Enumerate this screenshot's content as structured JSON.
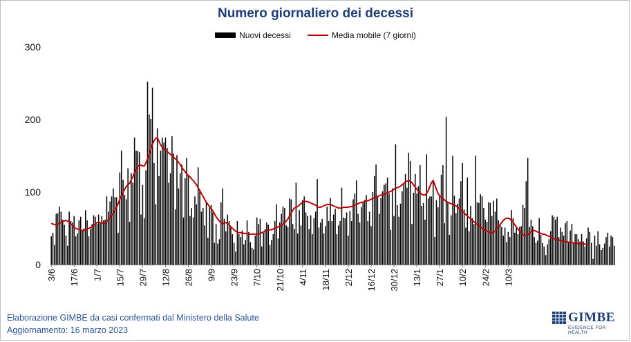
{
  "chart_data": {
    "type": "bar",
    "title": "Numero giornaliero dei decessi",
    "xlabel": "",
    "ylabel": "",
    "ylim": [
      0,
      300
    ],
    "yticks": [
      "0",
      "100",
      "200",
      "300"
    ],
    "tick_labels": [
      "3/6",
      "17/6",
      "1/7",
      "15/7",
      "29/7",
      "12/8",
      "26/8",
      "9/9",
      "23/9",
      "7/10",
      "21/10",
      "4/11",
      "18/11",
      "2/12",
      "16/12",
      "30/12",
      "13/1",
      "27/1",
      "10/2",
      "24/2",
      "10/3"
    ],
    "tick_interval_days": 14,
    "grid": false,
    "legend_position": "top",
    "series": [
      {
        "name": "Nuovi decessi",
        "kind": "bar",
        "color": "#000000",
        "values": [
          39,
          44,
          27,
          70,
          71,
          80,
          73,
          62,
          55,
          40,
          26,
          73,
          60,
          58,
          67,
          39,
          43,
          61,
          66,
          47,
          50,
          75,
          61,
          39,
          49,
          56,
          68,
          66,
          56,
          69,
          57,
          67,
          61,
          62,
          94,
          73,
          87,
          94,
          105,
          93,
          93,
          44,
          127,
          157,
          117,
          96,
          90,
          133,
          59,
          126,
          113,
          175,
          157,
          157,
          155,
          69,
          110,
          64,
          130,
          252,
          207,
          201,
          244,
          140,
          83,
          188,
          122,
          157,
          175,
          168,
          175,
          161,
          113,
          126,
          177,
          153,
          76,
          151,
          105,
          126,
          138,
          65,
          119,
          147,
          123,
          67,
          78,
          65,
          94,
          83,
          134,
          102,
          73,
          78,
          54,
          87,
          37,
          79,
          82,
          72,
          30,
          56,
          29,
          35,
          86,
          105,
          63,
          46,
          69,
          60,
          51,
          42,
          30,
          18,
          60,
          42,
          38,
          47,
          28,
          34,
          61,
          45,
          31,
          23,
          21,
          40,
          65,
          56,
          63,
          25,
          44,
          49,
          58,
          55,
          27,
          34,
          42,
          60,
          83,
          36,
          58,
          70,
          80,
          78,
          54,
          52,
          91,
          90,
          56,
          49,
          113,
          43,
          75,
          54,
          89,
          94,
          72,
          67,
          49,
          68,
          42,
          64,
          73,
          118,
          51,
          58,
          63,
          43,
          53,
          80,
          60,
          92,
          60,
          69,
          77,
          42,
          54,
          60,
          106,
          65,
          64,
          72,
          40,
          74,
          60,
          90,
          98,
          116,
          70,
          58,
          79,
          86,
          89,
          96,
          60,
          73,
          53,
          100,
          122,
          138,
          94,
          70,
          92,
          101,
          110,
          112,
          120,
          98,
          48,
          105,
          67,
          166,
          82,
          66,
          84,
          101,
          112,
          125,
          106,
          154,
          143,
          56,
          99,
          125,
          98,
          108,
          137,
          81,
          85,
          62,
          152,
          91,
          94,
          94,
          116,
          38,
          89,
          79,
          95,
          124,
          137,
          57,
          204,
          85,
          41,
          68,
          150,
          95,
          71,
          84,
          91,
          115,
          140,
          76,
          51,
          120,
          46,
          81,
          64,
          56,
          150,
          86,
          85,
          97,
          94,
          78,
          62,
          59,
          86,
          85,
          67,
          88,
          73,
          91,
          61,
          55,
          52,
          40,
          51,
          31,
          45,
          38,
          75,
          64,
          44,
          52,
          42,
          52,
          53,
          82,
          78,
          115,
          147,
          52,
          62,
          53,
          38,
          30,
          33,
          64,
          41,
          30,
          25,
          13,
          28,
          35,
          46,
          68,
          66,
          62,
          66,
          38,
          51,
          45,
          40,
          57,
          60,
          31,
          47,
          56,
          31,
          42,
          42,
          35,
          32,
          42,
          32,
          25,
          36,
          51,
          45,
          30,
          8,
          40,
          26,
          46,
          28,
          20,
          23,
          29,
          38,
          44,
          25,
          40,
          38,
          26
        ]
      },
      {
        "name": "Media mobile (7 giorni)",
        "kind": "line",
        "color": "#c00000",
        "values": [
          57,
          56,
          55,
          55,
          56,
          57,
          58,
          60,
          60,
          61,
          60,
          59,
          56,
          54,
          51,
          50,
          49,
          49,
          48,
          47,
          47,
          48,
          49,
          50,
          51,
          52,
          54,
          56,
          58,
          58,
          58,
          57,
          57,
          57,
          59,
          62,
          65,
          68,
          71,
          75,
          79,
          84,
          90,
          95,
          100,
          104,
          108,
          110,
          112,
          117,
          121,
          127,
          132,
          135,
          137,
          137,
          136,
          136,
          140,
          146,
          152,
          159,
          166,
          171,
          174,
          175,
          170,
          165,
          162,
          160,
          158,
          156,
          154,
          152,
          150,
          148,
          146,
          144,
          141,
          138,
          134,
          131,
          128,
          125,
          123,
          121,
          118,
          116,
          113,
          110,
          106,
          102,
          98,
          94,
          90,
          86,
          83,
          80,
          77,
          74,
          70,
          66,
          63,
          60,
          58,
          56,
          57,
          58,
          57,
          55,
          52,
          50,
          48,
          46,
          45,
          44,
          44,
          44,
          43,
          43,
          43,
          42,
          42,
          42,
          42,
          42,
          42,
          42,
          43,
          44,
          45,
          46,
          47,
          48,
          48,
          48,
          49,
          50,
          51,
          52,
          53,
          54,
          56,
          58,
          60,
          63,
          67,
          71,
          75,
          78,
          79,
          80,
          82,
          84,
          86,
          87,
          87,
          87,
          86,
          85,
          84,
          83,
          82,
          80,
          79,
          79,
          80,
          81,
          82,
          83,
          83,
          83,
          82,
          81,
          80,
          79,
          78,
          78,
          78,
          79,
          79,
          79,
          79,
          80,
          80,
          81,
          82,
          83,
          84,
          85,
          86,
          86,
          87,
          88,
          88,
          89,
          90,
          91,
          92,
          93,
          94,
          95,
          96,
          96,
          97,
          98,
          99,
          100,
          101,
          102,
          104,
          105,
          106,
          107,
          108,
          110,
          112,
          114,
          115,
          116,
          115,
          113,
          110,
          107,
          104,
          101,
          99,
          97,
          96,
          96,
          98,
          102,
          108,
          113,
          116,
          110,
          104,
          98,
          95,
          93,
          91,
          89,
          87,
          86,
          85,
          84,
          83,
          82,
          81,
          79,
          77,
          75,
          73,
          71,
          69,
          67,
          65,
          63,
          61,
          59,
          57,
          56,
          54,
          52,
          50,
          49,
          47,
          46,
          45,
          44,
          44,
          45,
          46,
          49,
          52,
          55,
          58,
          61,
          63,
          64,
          64,
          63,
          61,
          58,
          55,
          52,
          49,
          46,
          43,
          41,
          40,
          40,
          41,
          43,
          45,
          47,
          47,
          46,
          45,
          44,
          43,
          42,
          42,
          41,
          40,
          39,
          38,
          37,
          36,
          35,
          34,
          34,
          33,
          33,
          32,
          32,
          31,
          31,
          31,
          30,
          30,
          30,
          29,
          29,
          29,
          29,
          29,
          28,
          28,
          28
        ]
      }
    ],
    "footer_line1": "Elaborazione GIMBE da casi confermati dal Ministero della Salute",
    "footer_line2": "Aggiornamento: 16 marzo 2023",
    "logo_text": "GIMBE",
    "logo_subtitle": "EVIDENCE FOR HEALTH"
  }
}
